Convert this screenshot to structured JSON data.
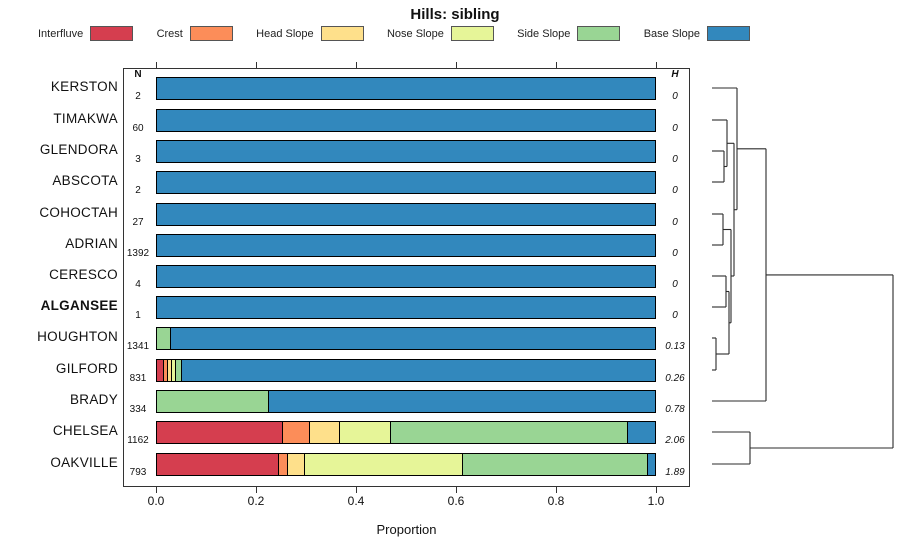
{
  "title": "Hills: sibling",
  "columns": {
    "n_header": "N",
    "h_header": "H"
  },
  "chart_data": {
    "type": "bar",
    "subtype": "horizontal-stacked-proportions-with-dendrogram",
    "title": "Hills: sibling",
    "xlabel": "Proportion",
    "xlim": [
      0,
      1
    ],
    "x_tick_labels": [
      "0.0",
      "0.2",
      "0.4",
      "0.6",
      "0.8",
      "1.0"
    ],
    "x_tick_values": [
      0,
      0.2,
      0.4,
      0.6,
      0.8,
      1.0
    ],
    "legend_position": "top",
    "categories": [
      "Interfluve",
      "Crest",
      "Head Slope",
      "Nose Slope",
      "Side Slope",
      "Base Slope"
    ],
    "category_colors": [
      "#D53E4F",
      "#FC8D59",
      "#FEE08B",
      "#E6F598",
      "#99D594",
      "#3288BD"
    ],
    "rows": [
      {
        "name": "KERSTON",
        "n": "2",
        "h": "0",
        "bold": false,
        "proportions": [
          0,
          0,
          0,
          0,
          0,
          1
        ]
      },
      {
        "name": "TIMAKWA",
        "n": "60",
        "h": "0",
        "bold": false,
        "proportions": [
          0,
          0,
          0,
          0,
          0,
          1
        ]
      },
      {
        "name": "GLENDORA",
        "n": "3",
        "h": "0",
        "bold": false,
        "proportions": [
          0,
          0,
          0,
          0,
          0,
          1
        ]
      },
      {
        "name": "ABSCOTA",
        "n": "2",
        "h": "0",
        "bold": false,
        "proportions": [
          0,
          0,
          0,
          0,
          0,
          1
        ]
      },
      {
        "name": "COHOCTAH",
        "n": "27",
        "h": "0",
        "bold": false,
        "proportions": [
          0,
          0,
          0,
          0,
          0,
          1
        ]
      },
      {
        "name": "ADRIAN",
        "n": "1392",
        "h": "0",
        "bold": false,
        "proportions": [
          0,
          0,
          0,
          0,
          0,
          1
        ]
      },
      {
        "name": "CERESCO",
        "n": "4",
        "h": "0",
        "bold": false,
        "proportions": [
          0,
          0,
          0,
          0,
          0,
          1
        ]
      },
      {
        "name": "ALGANSEE",
        "n": "1",
        "h": "0",
        "bold": true,
        "proportions": [
          0,
          0,
          0,
          0,
          0,
          1
        ]
      },
      {
        "name": "HOUGHTON",
        "n": "1341",
        "h": "0.13",
        "bold": false,
        "proportions": [
          0,
          0,
          0,
          0,
          0.026,
          0.974
        ]
      },
      {
        "name": "GILFORD",
        "n": "831",
        "h": "0.26",
        "bold": false,
        "proportions": [
          0.012,
          0.008,
          0.008,
          0.008,
          0.012,
          0.952
        ]
      },
      {
        "name": "BRADY",
        "n": "334",
        "h": "0.78",
        "bold": false,
        "proportions": [
          0,
          0,
          0,
          0,
          0.223,
          0.777
        ]
      },
      {
        "name": "CHELSEA",
        "n": "1162",
        "h": "2.06",
        "bold": false,
        "proportions": [
          0.25,
          0.055,
          0.06,
          0.103,
          0.476,
          0.056
        ]
      },
      {
        "name": "OAKVILLE",
        "n": "793",
        "h": "1.89",
        "bold": false,
        "proportions": [
          0.243,
          0.018,
          0.035,
          0.316,
          0.373,
          0.015
        ]
      }
    ],
    "dendrogram_segments": [
      [
        22,
        88,
        47,
        88
      ],
      [
        22,
        120,
        37,
        120
      ],
      [
        22,
        151,
        34,
        151
      ],
      [
        22,
        182,
        34,
        182
      ],
      [
        22,
        214,
        33,
        214
      ],
      [
        22,
        245,
        33,
        245
      ],
      [
        22,
        276,
        36,
        276
      ],
      [
        22,
        307,
        36,
        307
      ],
      [
        22,
        338,
        26,
        338
      ],
      [
        22,
        370,
        26,
        370
      ],
      [
        22,
        401,
        76,
        401
      ],
      [
        22,
        432,
        60,
        432
      ],
      [
        22,
        464,
        60,
        464
      ],
      [
        34,
        151,
        34,
        182
      ],
      [
        34,
        166.5,
        37,
        166.5
      ],
      [
        37,
        120,
        37,
        166.5
      ],
      [
        37,
        143.3,
        44,
        143.3
      ],
      [
        26,
        338,
        26,
        370
      ],
      [
        26,
        354,
        39,
        354
      ],
      [
        36,
        276,
        36,
        307
      ],
      [
        36,
        291.5,
        39,
        291.5
      ],
      [
        39,
        291.5,
        39,
        354
      ],
      [
        39,
        322.8,
        41,
        322.8
      ],
      [
        33,
        214,
        33,
        245
      ],
      [
        33,
        229.5,
        41,
        229.5
      ],
      [
        41,
        229.5,
        41,
        322.8
      ],
      [
        41,
        276,
        44,
        276
      ],
      [
        44,
        143.3,
        44,
        276
      ],
      [
        44,
        209.7,
        47,
        209.7
      ],
      [
        47,
        88,
        47,
        209.7
      ],
      [
        47,
        148.8,
        76,
        148.8
      ],
      [
        76,
        148.8,
        76,
        401
      ],
      [
        76,
        274.9,
        203,
        274.9
      ],
      [
        60,
        432,
        60,
        464
      ],
      [
        60,
        448,
        203,
        448
      ],
      [
        203,
        274.9,
        203,
        448
      ]
    ]
  }
}
